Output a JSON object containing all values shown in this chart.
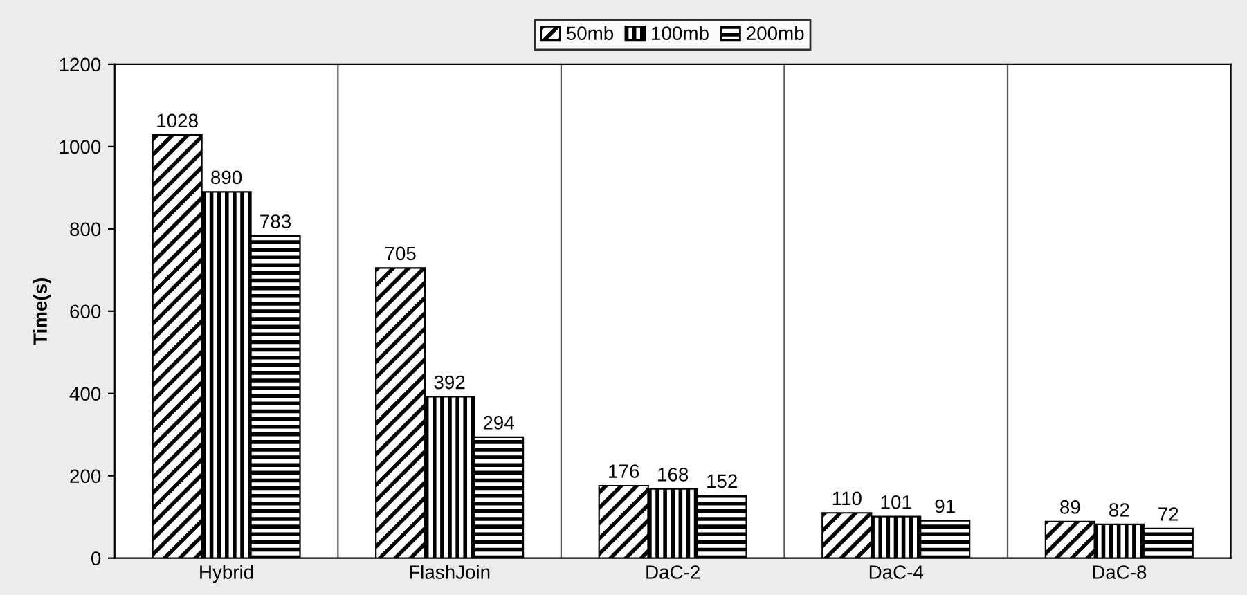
{
  "chart_data": {
    "type": "bar",
    "ylabel": "Time(s)",
    "categories": [
      "Hybrid",
      "FlashJoin",
      "DaC-2",
      "DaC-4",
      "DaC-8"
    ],
    "series": [
      {
        "name": "50mb",
        "color": "#000000",
        "values": [
          1028,
          705,
          176,
          110,
          89
        ]
      },
      {
        "name": "100mb",
        "color": "#000000",
        "values": [
          890,
          392,
          168,
          101,
          82
        ]
      },
      {
        "name": "200mb",
        "color": "#000000",
        "values": [
          783,
          294,
          152,
          91,
          72
        ]
      }
    ],
    "ylim": [
      0,
      1200
    ],
    "yticks": [
      0,
      200,
      400,
      600,
      800,
      1000,
      1200
    ],
    "data_labels": true,
    "grid": "x",
    "legend": "top"
  }
}
